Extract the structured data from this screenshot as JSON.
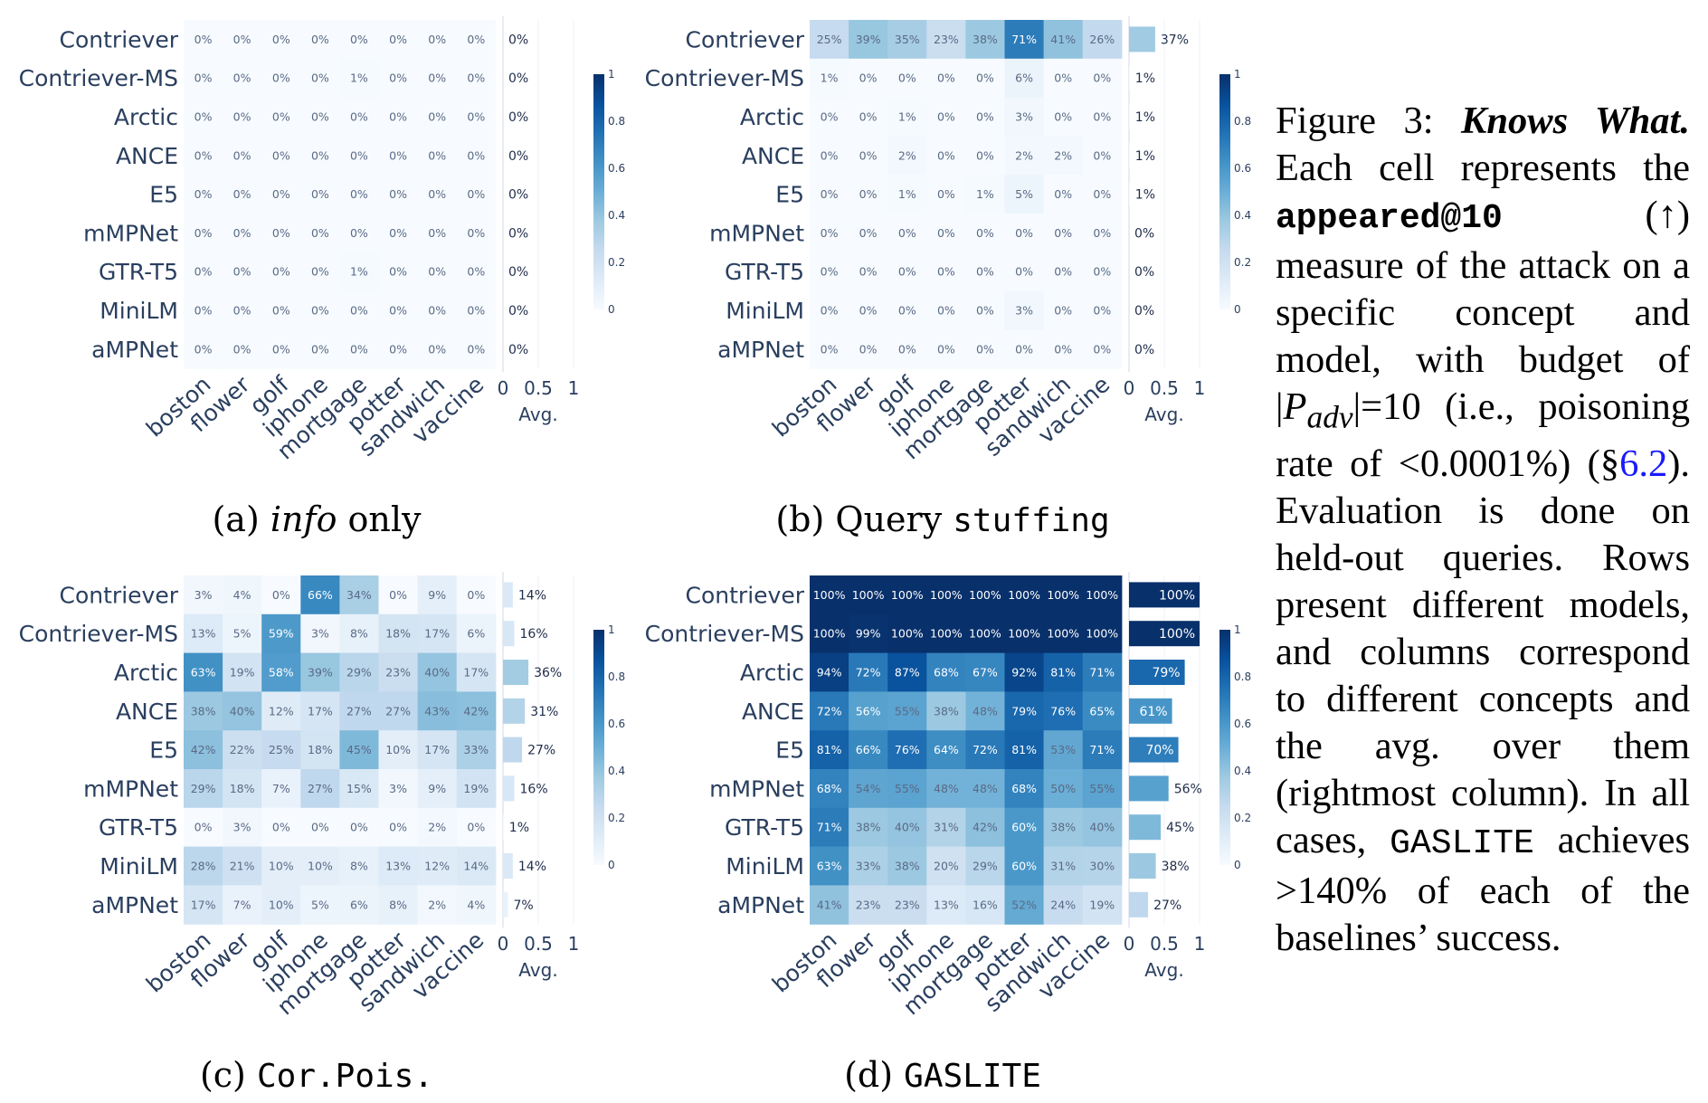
{
  "chart_data": [
    {
      "id": "a",
      "type": "heatmap",
      "subcaption_prefix": "(a) ",
      "subcaption_main": "info",
      "subcaption_suffix": " only",
      "rows": [
        "Contriever",
        "Contriever-MS",
        "Arctic",
        "ANCE",
        "E5",
        "mMPNet",
        "GTR-T5",
        "MiniLM",
        "aMPNet"
      ],
      "columns": [
        "boston",
        "flower",
        "golf",
        "iphone",
        "mortgage",
        "potter",
        "sandwich",
        "vaccine"
      ],
      "values": [
        [
          0,
          0,
          0,
          0,
          0,
          0,
          0,
          0
        ],
        [
          0,
          0,
          0,
          0,
          1,
          0,
          0,
          0
        ],
        [
          0,
          0,
          0,
          0,
          0,
          0,
          0,
          0
        ],
        [
          0,
          0,
          0,
          0,
          0,
          0,
          0,
          0
        ],
        [
          0,
          0,
          0,
          0,
          0,
          0,
          0,
          0
        ],
        [
          0,
          0,
          0,
          0,
          0,
          0,
          0,
          0
        ],
        [
          0,
          0,
          0,
          0,
          1,
          0,
          0,
          0
        ],
        [
          0,
          0,
          0,
          0,
          0,
          0,
          0,
          0
        ],
        [
          0,
          0,
          0,
          0,
          0,
          0,
          0,
          0
        ]
      ],
      "avg": [
        0,
        0,
        0,
        0,
        0,
        0,
        0,
        0,
        0
      ],
      "avg_axis_label": "Avg.",
      "avg_ticks": [
        "0",
        "0.5",
        "1"
      ],
      "colorbar_ticks": [
        "0",
        "0.2",
        "0.4",
        "0.6",
        "0.8",
        "1"
      ],
      "zrange": [
        0,
        1
      ],
      "unit": "%"
    },
    {
      "id": "b",
      "type": "heatmap",
      "subcaption_prefix": "(b) Query ",
      "subcaption_main": "stuffing",
      "subcaption_suffix": "",
      "rows": [
        "Contriever",
        "Contriever-MS",
        "Arctic",
        "ANCE",
        "E5",
        "mMPNet",
        "GTR-T5",
        "MiniLM",
        "aMPNet"
      ],
      "columns": [
        "boston",
        "flower",
        "golf",
        "iphone",
        "mortgage",
        "potter",
        "sandwich",
        "vaccine"
      ],
      "values": [
        [
          25,
          39,
          35,
          23,
          38,
          71,
          41,
          26
        ],
        [
          1,
          0,
          0,
          0,
          0,
          6,
          0,
          0
        ],
        [
          0,
          0,
          1,
          0,
          0,
          3,
          0,
          0
        ],
        [
          0,
          0,
          2,
          0,
          0,
          2,
          2,
          0
        ],
        [
          0,
          0,
          1,
          0,
          1,
          5,
          0,
          0
        ],
        [
          0,
          0,
          0,
          0,
          0,
          0,
          0,
          0
        ],
        [
          0,
          0,
          0,
          0,
          0,
          0,
          0,
          0
        ],
        [
          0,
          0,
          0,
          0,
          0,
          3,
          0,
          0
        ],
        [
          0,
          0,
          0,
          0,
          0,
          0,
          0,
          0
        ]
      ],
      "avg": [
        37,
        1,
        1,
        1,
        1,
        0,
        0,
        0,
        0
      ],
      "avg_axis_label": "Avg.",
      "avg_ticks": [
        "0",
        "0.5",
        "1"
      ],
      "colorbar_ticks": [
        "0",
        "0.2",
        "0.4",
        "0.6",
        "0.8",
        "1"
      ],
      "zrange": [
        0,
        1
      ],
      "unit": "%"
    },
    {
      "id": "c",
      "type": "heatmap",
      "subcaption_prefix": "(c) ",
      "subcaption_main": "Cor.Pois.",
      "subcaption_suffix": "",
      "rows": [
        "Contriever",
        "Contriever-MS",
        "Arctic",
        "ANCE",
        "E5",
        "mMPNet",
        "GTR-T5",
        "MiniLM",
        "aMPNet"
      ],
      "columns": [
        "boston",
        "flower",
        "golf",
        "iphone",
        "mortgage",
        "potter",
        "sandwich",
        "vaccine"
      ],
      "values": [
        [
          3,
          4,
          0,
          66,
          34,
          0,
          9,
          0
        ],
        [
          13,
          5,
          59,
          3,
          8,
          18,
          17,
          6
        ],
        [
          63,
          19,
          58,
          39,
          29,
          23,
          40,
          17
        ],
        [
          38,
          40,
          12,
          17,
          27,
          27,
          43,
          42
        ],
        [
          42,
          22,
          25,
          18,
          45,
          10,
          17,
          33
        ],
        [
          29,
          18,
          7,
          27,
          15,
          3,
          9,
          19
        ],
        [
          0,
          3,
          0,
          0,
          0,
          0,
          2,
          0
        ],
        [
          28,
          21,
          10,
          10,
          8,
          13,
          12,
          14
        ],
        [
          17,
          7,
          10,
          5,
          6,
          8,
          2,
          4
        ]
      ],
      "avg": [
        14,
        16,
        36,
        31,
        27,
        16,
        1,
        14,
        7
      ],
      "avg_axis_label": "Avg.",
      "avg_ticks": [
        "0",
        "0.5",
        "1"
      ],
      "colorbar_ticks": [
        "0",
        "0.2",
        "0.4",
        "0.6",
        "0.8",
        "1"
      ],
      "zrange": [
        0,
        1
      ],
      "unit": "%"
    },
    {
      "id": "d",
      "type": "heatmap",
      "subcaption_prefix": "(d) ",
      "subcaption_main": "GASLITE",
      "subcaption_suffix": "",
      "rows": [
        "Contriever",
        "Contriever-MS",
        "Arctic",
        "ANCE",
        "E5",
        "mMPNet",
        "GTR-T5",
        "MiniLM",
        "aMPNet"
      ],
      "columns": [
        "boston",
        "flower",
        "golf",
        "iphone",
        "mortgage",
        "potter",
        "sandwich",
        "vaccine"
      ],
      "values": [
        [
          100,
          100,
          100,
          100,
          100,
          100,
          100,
          100
        ],
        [
          100,
          99,
          100,
          100,
          100,
          100,
          100,
          100
        ],
        [
          94,
          72,
          87,
          68,
          67,
          92,
          81,
          71
        ],
        [
          72,
          56,
          55,
          38,
          48,
          79,
          76,
          65
        ],
        [
          81,
          66,
          76,
          64,
          72,
          81,
          53,
          71
        ],
        [
          68,
          54,
          55,
          48,
          48,
          68,
          50,
          55
        ],
        [
          71,
          38,
          40,
          31,
          42,
          60,
          38,
          40
        ],
        [
          63,
          33,
          38,
          20,
          29,
          60,
          31,
          30
        ],
        [
          41,
          23,
          23,
          13,
          16,
          52,
          24,
          19
        ]
      ],
      "avg": [
        100,
        100,
        79,
        61,
        70,
        56,
        45,
        38,
        27
      ],
      "avg_axis_label": "Avg.",
      "avg_ticks": [
        "0",
        "0.5",
        "1"
      ],
      "colorbar_ticks": [
        "0",
        "0.2",
        "0.4",
        "0.6",
        "0.8",
        "1"
      ],
      "zrange": [
        0,
        1
      ],
      "unit": "%"
    }
  ],
  "caption": {
    "fig": "Figure 3: ",
    "title": "Knows What.",
    "t1": " Each cell represents the ",
    "metric": "appeared@10",
    "t2": " (↑) measure of the attack on a specific concept and model, with budget of |",
    "padv_p": "P",
    "padv_sub": "adv",
    "t3": "|=10 (i.e., poisoning rate of <0.0001%) (§",
    "ref": "6.2",
    "t4": "). Evaluation is done on held-out queries. Rows present different models, and columns correspond to different concepts and the avg. over them (rightmost column). In all cases, ",
    "method": "GASLITE",
    "t5": " achieves >140% of each of the baselines’ success."
  },
  "colors": {
    "scale": [
      "#f7fbff",
      "#deebf7",
      "#c6dbef",
      "#9ecae1",
      "#6baed6",
      "#4292c6",
      "#2171b5",
      "#08519c",
      "#08306b"
    ],
    "label": "#2a3f5f",
    "link": "#1a1aff"
  }
}
